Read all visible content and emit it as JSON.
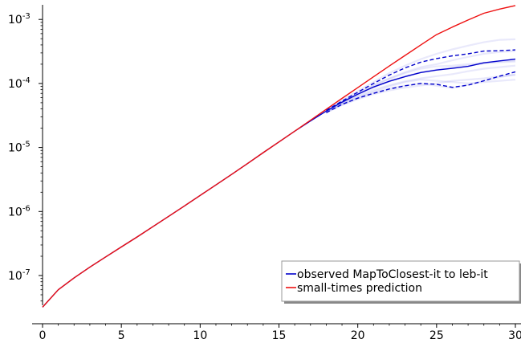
{
  "chart_data": {
    "type": "line",
    "title": "",
    "xlabel": "",
    "ylabel": "",
    "xlim": [
      0,
      30
    ],
    "ylim_log10": [
      -7.55,
      -2.8
    ],
    "y_scale": "log",
    "grid": false,
    "legend_position": "bottom-right",
    "x_ticks": [
      {
        "value": 0,
        "label": "0"
      },
      {
        "value": 5,
        "label": "5"
      },
      {
        "value": 10,
        "label": "10"
      },
      {
        "value": 15,
        "label": "15"
      },
      {
        "value": 20,
        "label": "20"
      },
      {
        "value": 25,
        "label": "25"
      },
      {
        "value": 30,
        "label": "30"
      }
    ],
    "y_ticks": [
      {
        "exp": -7,
        "base": "10",
        "sup": "-7"
      },
      {
        "exp": -6,
        "base": "10",
        "sup": "-6"
      },
      {
        "exp": -5,
        "base": "10",
        "sup": "-5"
      },
      {
        "exp": -4,
        "base": "10",
        "sup": "-4"
      },
      {
        "exp": -3,
        "base": "10",
        "sup": "-3"
      }
    ],
    "series": [
      {
        "name": "observed MapToClosest-it to leb-it",
        "color": "#0000cc",
        "style": "solid",
        "x": [
          0,
          1,
          2,
          3,
          4,
          5,
          6,
          7,
          8,
          9,
          10,
          11,
          12,
          13,
          14,
          15,
          16,
          17,
          18,
          19,
          20,
          21,
          22,
          23,
          24,
          25,
          26,
          27,
          28,
          29,
          30
        ],
        "y": [
          3.2e-08,
          6e-08,
          9.2e-08,
          1.35e-07,
          1.95e-07,
          2.8e-07,
          4e-07,
          5.8e-07,
          8.4e-07,
          1.22e-06,
          1.78e-06,
          2.6e-06,
          3.8e-06,
          5.6e-06,
          8.3e-06,
          1.22e-05,
          1.8e-05,
          2.6e-05,
          3.7e-05,
          5.1e-05,
          6.8e-05,
          8.8e-05,
          0.000108,
          0.000128,
          0.000148,
          0.000162,
          0.000172,
          0.000185,
          0.00021,
          0.000225,
          0.00024
        ]
      },
      {
        "name": "",
        "color": "#0000cc",
        "style": "dashed",
        "x": [
          18,
          19,
          20,
          21,
          22,
          23,
          24,
          25,
          26,
          27,
          28,
          29,
          30
        ],
        "y": [
          3.8e-05,
          5.3e-05,
          7.3e-05,
          0.0001,
          0.000135,
          0.000175,
          0.000215,
          0.000245,
          0.00027,
          0.00029,
          0.00032,
          0.000325,
          0.000335
        ]
      },
      {
        "name": "",
        "color": "#0000cc",
        "style": "dashed",
        "x": [
          18,
          19,
          20,
          21,
          22,
          23,
          24,
          25,
          26,
          27,
          28,
          29,
          30
        ],
        "y": [
          3.5e-05,
          4.7e-05,
          5.9e-05,
          7e-05,
          8.2e-05,
          9.2e-05,
          0.0001,
          9.7e-05,
          8.7e-05,
          9.4e-05,
          0.00011,
          0.00013,
          0.000152
        ]
      },
      {
        "name": "small-times prediction",
        "color": "#ee1111",
        "style": "solid",
        "x": [
          0,
          1,
          2,
          3,
          4,
          5,
          6,
          7,
          8,
          9,
          10,
          11,
          12,
          13,
          14,
          15,
          16,
          17,
          18,
          19,
          20,
          21,
          22,
          23,
          24,
          25,
          26,
          27,
          28,
          29,
          30
        ],
        "y": [
          3.2e-08,
          6e-08,
          9.2e-08,
          1.35e-07,
          1.95e-07,
          2.8e-07,
          4e-07,
          5.8e-07,
          8.4e-07,
          1.22e-06,
          1.78e-06,
          2.6e-06,
          3.8e-06,
          5.6e-06,
          8.3e-06,
          1.22e-05,
          1.8e-05,
          2.66e-05,
          3.95e-05,
          5.85e-05,
          8.6e-05,
          0.000127,
          0.000187,
          0.000274,
          0.0004,
          0.00058,
          0.00076,
          0.00098,
          0.00125,
          0.00145,
          0.00165
        ]
      }
    ],
    "background_traces": {
      "color": "#9999ee",
      "opacity": 0.22,
      "x": [
        18,
        19,
        20,
        21,
        22,
        23,
        24,
        25,
        26,
        27,
        28,
        29,
        30
      ],
      "traces": [
        [
          3.7e-05,
          5.4e-05,
          7.6e-05,
          0.000105,
          0.000145,
          0.00019,
          0.00024,
          0.00029,
          0.00034,
          0.00039,
          0.00044,
          0.00048,
          0.00049
        ],
        [
          3.7e-05,
          5.2e-05,
          7e-05,
          9.5e-05,
          0.00012,
          0.00015,
          0.00018,
          0.0002,
          0.00023,
          0.00026,
          0.00029,
          0.00031,
          0.00032
        ],
        [
          3.6e-05,
          5e-05,
          6.6e-05,
          8.6e-05,
          0.000108,
          0.00013,
          0.00015,
          0.000165,
          0.00018,
          0.00019,
          0.000205,
          0.00022,
          0.00023
        ],
        [
          3.6e-05,
          4.9e-05,
          6.3e-05,
          7.9e-05,
          9.4e-05,
          0.000108,
          0.00012,
          0.00013,
          0.00014,
          0.000155,
          0.00017,
          0.00018,
          0.00019
        ],
        [
          3.5e-05,
          4.7e-05,
          5.9e-05,
          7.2e-05,
          8.3e-05,
          9.3e-05,
          0.0001,
          9.2e-05,
          8.5e-05,
          9.5e-05,
          0.00011,
          0.000125,
          0.00014
        ],
        [
          3.5e-05,
          4.6e-05,
          5.7e-05,
          6.8e-05,
          7.8e-05,
          8.6e-05,
          9.3e-05,
          0.0001,
          0.00011,
          0.000115,
          0.00012,
          0.00013,
          0.000135
        ],
        [
          3.6e-05,
          4.8e-05,
          6.1e-05,
          7.5e-05,
          9e-05,
          0.000105,
          0.000115,
          0.00011,
          0.000105,
          0.0001,
          0.000105,
          0.00011,
          0.000115
        ],
        [
          3.7e-05,
          5.1e-05,
          6.9e-05,
          9.2e-05,
          0.000118,
          0.000145,
          0.00017,
          0.000185,
          0.00019,
          0.0002,
          0.00021,
          0.000215,
          0.00022
        ]
      ]
    }
  }
}
